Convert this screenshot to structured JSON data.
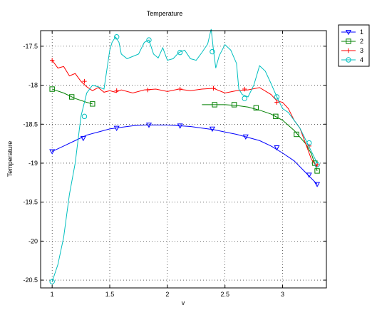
{
  "chart_data": {
    "type": "line",
    "title": "Temperature",
    "xlabel": "v",
    "ylabel": "Temperature",
    "xlim": [
      0.9,
      3.38
    ],
    "ylim": [
      -20.6,
      -17.3
    ],
    "xticks": [
      1,
      1.5,
      2,
      2.5,
      3
    ],
    "xtick_labels": [
      "1",
      "1.5",
      "2",
      "2.5",
      "3"
    ],
    "yticks": [
      -20.5,
      -20,
      -19.5,
      -19,
      -18.5,
      -18,
      -17.5
    ],
    "ytick_labels": [
      "-20.5",
      "-20",
      "-19.5",
      "-19",
      "-18.5",
      "-18",
      "-17.5"
    ],
    "grid": true,
    "legend_position": "outside-top-right",
    "series": [
      {
        "name": "1",
        "color": "#0000ff",
        "marker": "triangle-down",
        "x": [
          1.0,
          1.1,
          1.2,
          1.3,
          1.4,
          1.5,
          1.6,
          1.7,
          1.8,
          1.9,
          2.0,
          2.1,
          2.2,
          2.3,
          2.4,
          2.5,
          2.6,
          2.7,
          2.8,
          2.9,
          3.0,
          3.1,
          3.2,
          3.3
        ],
        "y": [
          -18.85,
          -18.78,
          -18.71,
          -18.64,
          -18.6,
          -18.56,
          -18.54,
          -18.52,
          -18.51,
          -18.51,
          -18.51,
          -18.52,
          -18.53,
          -18.55,
          -18.57,
          -18.6,
          -18.63,
          -18.67,
          -18.71,
          -18.78,
          -18.87,
          -18.97,
          -19.12,
          -19.27
        ],
        "marker_x": [
          1.0,
          1.27,
          1.56,
          1.84,
          2.11,
          2.39,
          2.68,
          2.95,
          3.23,
          3.3
        ],
        "marker_y": [
          -18.85,
          -18.68,
          -18.55,
          -18.51,
          -18.52,
          -18.56,
          -18.66,
          -18.8,
          -19.15,
          -19.27
        ]
      },
      {
        "name": "2",
        "color": "#008000",
        "marker": "square",
        "x": [
          1.0,
          1.1,
          1.2,
          1.3,
          1.35
        ],
        "y": [
          -18.05,
          -18.1,
          -18.17,
          -18.22,
          -18.24
        ],
        "x2": [
          2.3,
          2.4,
          2.5,
          2.6,
          2.7,
          2.8,
          2.9,
          3.0,
          3.1,
          3.2,
          3.25,
          3.3
        ],
        "y2": [
          -18.25,
          -18.25,
          -18.25,
          -18.26,
          -18.28,
          -18.32,
          -18.37,
          -18.45,
          -18.58,
          -18.75,
          -18.88,
          -19.1
        ],
        "marker_x": [
          1.0,
          1.17,
          1.35,
          2.41,
          2.58,
          2.77,
          2.94,
          3.12,
          3.28,
          3.3
        ],
        "marker_y": [
          -18.05,
          -18.15,
          -18.24,
          -18.25,
          -18.25,
          -18.29,
          -18.4,
          -18.63,
          -19.0,
          -19.1
        ]
      },
      {
        "name": "3",
        "color": "#ff0000",
        "marker": "plus",
        "x": [
          1.0,
          1.05,
          1.1,
          1.15,
          1.2,
          1.25,
          1.3,
          1.35,
          1.4,
          1.45,
          1.5,
          1.55,
          1.6,
          1.7,
          1.8,
          1.9,
          2.0,
          2.1,
          2.2,
          2.3,
          2.4,
          2.5,
          2.6,
          2.7,
          2.8,
          2.9,
          2.95,
          3.0,
          3.05,
          3.1,
          3.15,
          3.2,
          3.25,
          3.3
        ],
        "y": [
          -17.68,
          -17.78,
          -17.76,
          -17.88,
          -17.85,
          -17.95,
          -18.02,
          -18.07,
          -18.03,
          -18.09,
          -18.07,
          -18.09,
          -18.06,
          -18.1,
          -18.06,
          -18.05,
          -18.08,
          -18.05,
          -18.07,
          -18.05,
          -18.04,
          -18.1,
          -18.07,
          -18.06,
          -18.03,
          -18.12,
          -18.2,
          -18.22,
          -18.3,
          -18.45,
          -18.55,
          -18.75,
          -18.95,
          -19.05
        ],
        "marker_x": [
          1.0,
          1.28,
          1.56,
          1.83,
          2.11,
          2.4,
          2.67,
          2.95,
          3.23,
          3.3
        ],
        "marker_y": [
          -17.68,
          -17.95,
          -18.07,
          -18.06,
          -18.05,
          -18.04,
          -18.05,
          -18.22,
          -18.78,
          -19.02
        ]
      },
      {
        "name": "4",
        "color": "#00bfbf",
        "marker": "circle",
        "x": [
          1.0,
          1.05,
          1.1,
          1.15,
          1.2,
          1.25,
          1.3,
          1.35,
          1.4,
          1.45,
          1.5,
          1.52,
          1.55,
          1.58,
          1.6,
          1.65,
          1.7,
          1.75,
          1.8,
          1.84,
          1.88,
          1.92,
          1.96,
          2.0,
          2.05,
          2.1,
          2.15,
          2.2,
          2.25,
          2.3,
          2.35,
          2.38,
          2.4,
          2.42,
          2.45,
          2.5,
          2.55,
          2.6,
          2.62,
          2.65,
          2.7,
          2.75,
          2.8,
          2.85,
          2.9,
          2.95,
          3.0,
          3.05,
          3.1,
          3.15,
          3.2,
          3.25,
          3.3
        ],
        "y": [
          -20.52,
          -20.3,
          -19.95,
          -19.4,
          -19.0,
          -18.4,
          -18.1,
          -18.0,
          -18.02,
          -18.05,
          -17.55,
          -17.45,
          -17.38,
          -17.45,
          -17.6,
          -17.66,
          -17.63,
          -17.6,
          -17.45,
          -17.42,
          -17.6,
          -17.65,
          -17.52,
          -17.68,
          -17.66,
          -17.58,
          -17.55,
          -17.66,
          -17.68,
          -17.58,
          -17.47,
          -17.28,
          -17.55,
          -17.78,
          -17.62,
          -17.48,
          -17.55,
          -17.72,
          -18.05,
          -18.12,
          -18.15,
          -18.0,
          -17.75,
          -17.82,
          -17.98,
          -18.15,
          -18.3,
          -18.35,
          -18.45,
          -18.55,
          -18.7,
          -18.85,
          -19.0
        ],
        "marker_x": [
          1.0,
          1.28,
          1.56,
          1.84,
          2.11,
          2.39,
          2.67,
          2.95,
          3.23,
          3.3
        ],
        "marker_y": [
          -20.52,
          -18.4,
          -17.38,
          -17.42,
          -17.58,
          -17.57,
          -18.17,
          -18.15,
          -18.74,
          -19.02
        ]
      }
    ]
  }
}
